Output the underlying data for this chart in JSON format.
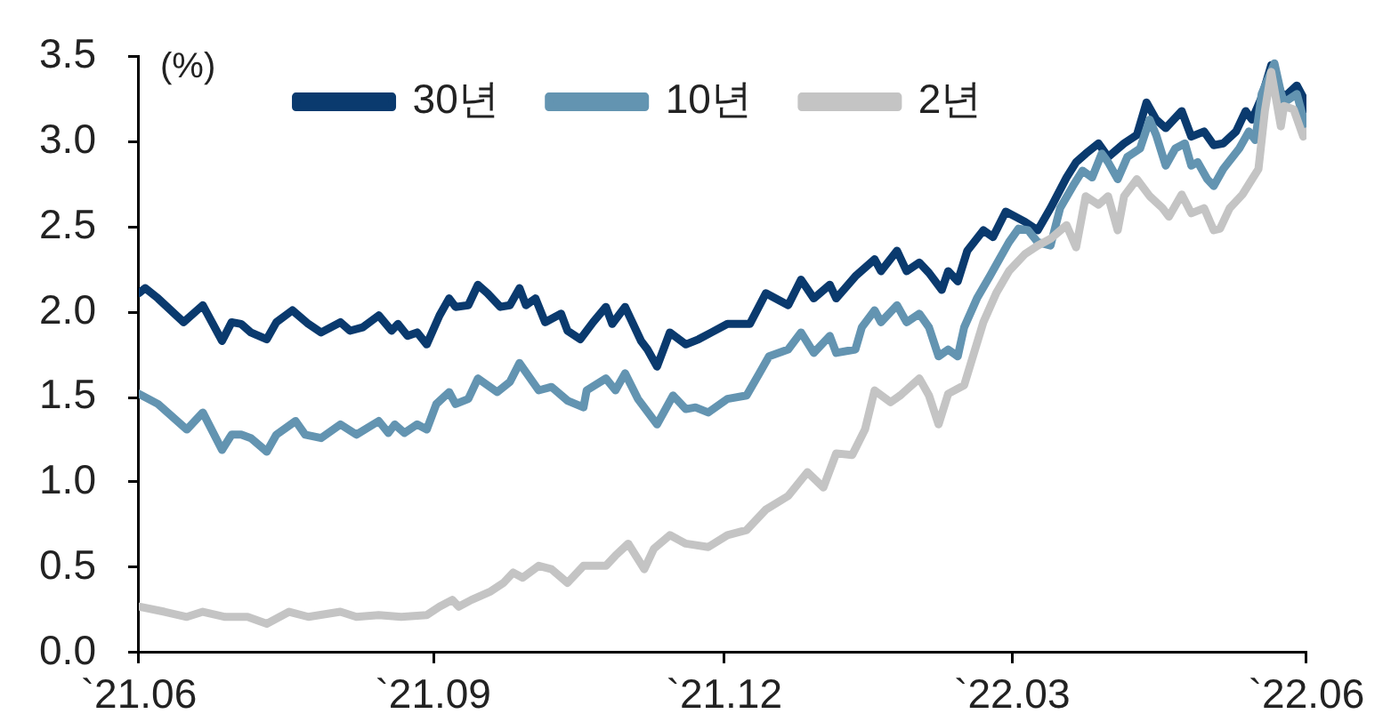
{
  "chart_data": {
    "type": "line",
    "ylabel": "(%)",
    "legend": "top",
    "xlim": [
      "2021-06",
      "2022-06"
    ],
    "xticks": [
      {
        "value": "2021-06",
        "label": "`21.06"
      },
      {
        "value": "2021-09",
        "label": "`21.09"
      },
      {
        "value": "2021-12",
        "label": "`21.12"
      },
      {
        "value": "2022-03",
        "label": "`22.03"
      },
      {
        "value": "2022-06",
        "label": "`22.06"
      }
    ],
    "ylim": [
      0,
      3.5
    ],
    "yticks": [
      {
        "value": 0,
        "label": "0.0"
      },
      0.5,
      {
        "value": 1,
        "label": "1.0"
      },
      1.5,
      {
        "value": 2,
        "label": "2.0"
      },
      2.5,
      {
        "value": 3,
        "label": "3.0"
      },
      3.5
    ],
    "series": [
      {
        "name": "30년",
        "color": "#0a3a6e",
        "x": [
          "2021-06-01",
          "2021-06-03",
          "2021-06-07",
          "2021-06-15",
          "2021-06-21",
          "2021-06-27",
          "2021-06-30",
          "2021-07-03",
          "2021-07-06",
          "2021-07-11",
          "2021-07-14",
          "2021-07-19",
          "2021-07-24",
          "2021-07-28",
          "2021-08-03",
          "2021-08-06",
          "2021-08-10",
          "2021-08-15",
          "2021-08-19",
          "2021-08-21",
          "2021-08-24",
          "2021-08-27",
          "2021-08-30",
          "2021-09-03",
          "2021-09-06",
          "2021-09-08",
          "2021-09-12",
          "2021-09-15",
          "2021-09-18",
          "2021-09-22",
          "2021-09-25",
          "2021-09-28",
          "2021-09-30",
          "2021-10-03",
          "2021-10-06",
          "2021-10-11",
          "2021-10-13",
          "2021-10-17",
          "2021-10-21",
          "2021-10-25",
          "2021-10-27",
          "2021-10-31",
          "2021-11-05",
          "2021-11-07",
          "2021-11-10",
          "2021-11-14",
          "2021-11-19",
          "2021-11-23",
          "2021-11-27",
          "2021-12-02",
          "2021-12-09",
          "2021-12-14",
          "2021-12-21",
          "2021-12-25",
          "2021-12-29",
          "2022-01-03",
          "2022-01-05",
          "2022-01-11",
          "2022-01-17",
          "2022-01-19",
          "2022-01-24",
          "2022-01-27",
          "2022-01-31",
          "2022-02-03",
          "2022-02-07",
          "2022-02-09",
          "2022-02-12",
          "2022-02-15",
          "2022-02-20",
          "2022-02-23",
          "2022-02-27",
          "2022-03-02",
          "2022-03-05",
          "2022-03-09",
          "2022-03-13",
          "2022-03-18",
          "2022-03-21",
          "2022-03-24",
          "2022-03-28",
          "2022-03-31",
          "2022-04-05",
          "2022-04-09",
          "2022-04-12",
          "2022-04-15",
          "2022-04-18",
          "2022-04-23",
          "2022-04-26",
          "2022-04-30",
          "2022-05-03",
          "2022-05-06",
          "2022-05-10",
          "2022-05-13",
          "2022-05-15",
          "2022-05-18",
          "2022-05-21",
          "2022-05-24",
          "2022-05-25",
          "2022-05-29",
          "2022-05-31",
          "2022-06-01"
        ],
        "values": [
          2.11,
          2.14,
          2.08,
          1.94,
          2.04,
          1.83,
          1.94,
          1.93,
          1.88,
          1.84,
          1.94,
          2.01,
          1.93,
          1.88,
          1.94,
          1.89,
          1.91,
          1.98,
          1.89,
          1.93,
          1.86,
          1.88,
          1.81,
          1.98,
          2.08,
          2.03,
          2.04,
          2.16,
          2.11,
          2.03,
          2.04,
          2.14,
          2.04,
          2.08,
          1.94,
          1.99,
          1.89,
          1.84,
          1.94,
          2.03,
          1.93,
          2.03,
          1.83,
          1.78,
          1.68,
          1.88,
          1.81,
          1.84,
          1.88,
          1.93,
          1.93,
          2.11,
          2.04,
          2.19,
          2.08,
          2.16,
          2.08,
          2.21,
          2.31,
          2.24,
          2.36,
          2.24,
          2.29,
          2.23,
          2.13,
          2.24,
          2.18,
          2.36,
          2.48,
          2.44,
          2.59,
          2.56,
          2.53,
          2.48,
          2.61,
          2.79,
          2.88,
          2.93,
          2.99,
          2.91,
          2.99,
          3.04,
          3.23,
          3.13,
          3.08,
          3.18,
          3.03,
          3.06,
          2.98,
          2.99,
          3.06,
          3.18,
          3.13,
          3.26,
          3.45,
          3.29,
          3.26,
          3.33,
          3.26,
          3.19
        ]
      },
      {
        "name": "10년",
        "color": "#6394b1",
        "x": [
          "2021-06-01",
          "2021-06-07",
          "2021-06-16",
          "2021-06-21",
          "2021-06-27",
          "2021-06-30",
          "2021-07-03",
          "2021-07-06",
          "2021-07-11",
          "2021-07-14",
          "2021-07-20",
          "2021-07-23",
          "2021-07-28",
          "2021-08-03",
          "2021-08-08",
          "2021-08-15",
          "2021-08-18",
          "2021-08-20",
          "2021-08-23",
          "2021-08-27",
          "2021-08-30",
          "2021-09-02",
          "2021-09-06",
          "2021-09-08",
          "2021-09-12",
          "2021-09-15",
          "2021-09-21",
          "2021-09-25",
          "2021-09-28",
          "2021-10-04",
          "2021-10-08",
          "2021-10-13",
          "2021-10-18",
          "2021-10-19",
          "2021-10-25",
          "2021-10-28",
          "2021-10-31",
          "2021-11-04",
          "2021-11-10",
          "2021-11-15",
          "2021-11-19",
          "2021-11-22",
          "2021-11-26",
          "2021-12-02",
          "2021-12-08",
          "2021-12-12",
          "2021-12-15",
          "2021-12-21",
          "2021-12-25",
          "2021-12-29",
          "2022-01-03",
          "2022-01-05",
          "2022-01-11",
          "2022-01-13",
          "2022-01-17",
          "2022-01-19",
          "2022-01-24",
          "2022-01-27",
          "2022-01-31",
          "2022-02-03",
          "2022-02-06",
          "2022-02-09",
          "2022-02-12",
          "2022-02-14",
          "2022-02-18",
          "2022-02-22",
          "2022-02-25",
          "2022-02-28",
          "2022-03-03",
          "2022-03-06",
          "2022-03-09",
          "2022-03-13",
          "2022-03-16",
          "2022-03-20",
          "2022-03-23",
          "2022-03-26",
          "2022-03-29",
          "2022-03-31",
          "2022-04-03",
          "2022-04-06",
          "2022-04-10",
          "2022-04-13",
          "2022-04-15",
          "2022-04-18",
          "2022-04-21",
          "2022-04-24",
          "2022-04-26",
          "2022-04-28",
          "2022-05-01",
          "2022-05-03",
          "2022-05-06",
          "2022-05-11",
          "2022-05-14",
          "2022-05-16",
          "2022-05-18",
          "2022-05-22",
          "2022-05-24",
          "2022-05-25",
          "2022-05-29",
          "2022-05-31",
          "2022-06-01"
        ],
        "values": [
          1.52,
          1.46,
          1.31,
          1.41,
          1.19,
          1.28,
          1.28,
          1.26,
          1.18,
          1.28,
          1.36,
          1.28,
          1.26,
          1.34,
          1.28,
          1.36,
          1.29,
          1.34,
          1.29,
          1.34,
          1.31,
          1.46,
          1.53,
          1.46,
          1.49,
          1.61,
          1.53,
          1.59,
          1.7,
          1.54,
          1.56,
          1.48,
          1.44,
          1.54,
          1.61,
          1.54,
          1.64,
          1.49,
          1.34,
          1.51,
          1.43,
          1.44,
          1.41,
          1.49,
          1.51,
          1.64,
          1.74,
          1.78,
          1.88,
          1.76,
          1.86,
          1.76,
          1.78,
          1.91,
          2.01,
          1.94,
          2.04,
          1.94,
          1.99,
          1.91,
          1.74,
          1.78,
          1.74,
          1.91,
          2.08,
          2.21,
          2.31,
          2.41,
          2.49,
          2.48,
          2.41,
          2.39,
          2.61,
          2.74,
          2.83,
          2.79,
          2.93,
          2.88,
          2.78,
          2.91,
          2.96,
          3.13,
          3.04,
          2.86,
          2.96,
          2.99,
          2.86,
          2.88,
          2.78,
          2.74,
          2.84,
          2.96,
          3.06,
          3.01,
          3.28,
          3.46,
          3.29,
          3.23,
          3.28,
          3.14,
          3.09
        ]
      },
      {
        "name": "2년",
        "color": "#c4c4c4",
        "x": [
          "2021-06-01",
          "2021-06-09",
          "2021-06-16",
          "2021-06-21",
          "2021-06-28",
          "2021-07-05",
          "2021-07-11",
          "2021-07-18",
          "2021-07-24",
          "2021-08-03",
          "2021-08-08",
          "2021-08-15",
          "2021-08-22",
          "2021-08-30",
          "2021-09-03",
          "2021-09-07",
          "2021-09-09",
          "2021-09-13",
          "2021-09-19",
          "2021-09-23",
          "2021-09-26",
          "2021-09-29",
          "2021-10-04",
          "2021-10-08",
          "2021-10-13",
          "2021-10-18",
          "2021-10-25",
          "2021-10-28",
          "2021-11-01",
          "2021-11-06",
          "2021-11-09",
          "2021-11-14",
          "2021-11-19",
          "2021-11-26",
          "2021-12-02",
          "2021-12-08",
          "2021-12-14",
          "2021-12-21",
          "2021-12-27",
          "2022-01-01",
          "2022-01-05",
          "2022-01-10",
          "2022-01-14",
          "2022-01-17",
          "2022-01-22",
          "2022-01-25",
          "2022-01-31",
          "2022-02-03",
          "2022-02-06",
          "2022-02-09",
          "2022-02-14",
          "2022-02-20",
          "2022-02-24",
          "2022-02-28",
          "2022-03-05",
          "2022-03-09",
          "2022-03-13",
          "2022-03-18",
          "2022-03-21",
          "2022-03-24",
          "2022-03-28",
          "2022-03-31",
          "2022-04-03",
          "2022-04-05",
          "2022-04-09",
          "2022-04-13",
          "2022-04-17",
          "2022-04-19",
          "2022-04-23",
          "2022-04-26",
          "2022-04-30",
          "2022-05-03",
          "2022-05-05",
          "2022-05-08",
          "2022-05-12",
          "2022-05-15",
          "2022-05-17",
          "2022-05-19",
          "2022-05-21",
          "2022-05-24",
          "2022-05-25",
          "2022-05-28",
          "2022-05-31",
          "2022-06-01"
        ],
        "values": [
          0.27,
          0.24,
          0.21,
          0.24,
          0.21,
          0.21,
          0.17,
          0.24,
          0.21,
          0.24,
          0.21,
          0.22,
          0.21,
          0.22,
          0.27,
          0.31,
          0.27,
          0.31,
          0.36,
          0.41,
          0.47,
          0.44,
          0.51,
          0.49,
          0.41,
          0.51,
          0.51,
          0.57,
          0.64,
          0.49,
          0.61,
          0.69,
          0.64,
          0.62,
          0.69,
          0.72,
          0.84,
          0.92,
          1.06,
          0.97,
          1.17,
          1.16,
          1.31,
          1.54,
          1.47,
          1.51,
          1.61,
          1.51,
          1.34,
          1.52,
          1.57,
          1.94,
          2.11,
          2.24,
          2.34,
          2.39,
          2.43,
          2.51,
          2.38,
          2.68,
          2.63,
          2.68,
          2.48,
          2.68,
          2.78,
          2.68,
          2.61,
          2.56,
          2.69,
          2.58,
          2.61,
          2.48,
          2.49,
          2.61,
          2.69,
          2.78,
          2.84,
          3.18,
          3.41,
          3.09,
          3.21,
          3.19,
          3.03,
          3.06
        ]
      }
    ]
  }
}
